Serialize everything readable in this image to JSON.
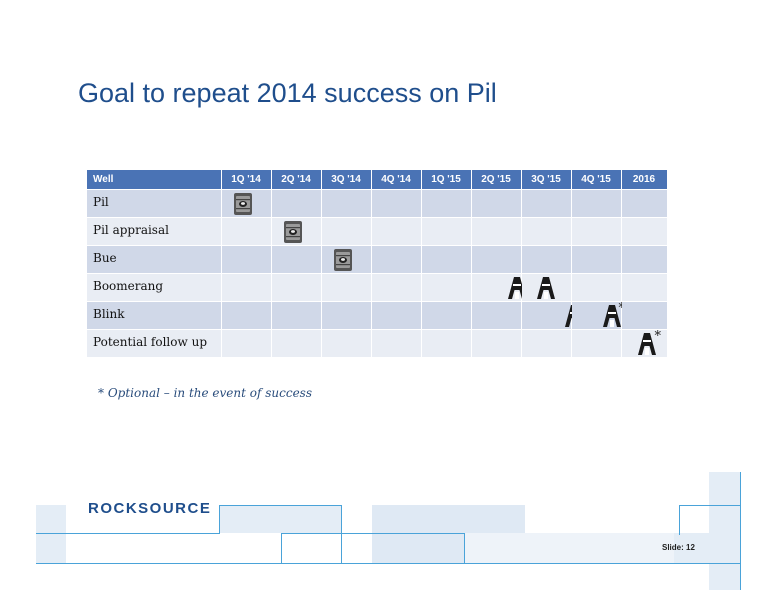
{
  "title": "Goal to repeat 2014 success on Pil",
  "table": {
    "headers": [
      "Well",
      "1Q '14",
      "2Q '14",
      "3Q '14",
      "4Q '14",
      "1Q '15",
      "2Q '15",
      "3Q '15",
      "4Q '15",
      "2016"
    ],
    "rows": [
      {
        "name": "Pil"
      },
      {
        "name": "Pil appraisal"
      },
      {
        "name": "Bue"
      },
      {
        "name": "Boomerang"
      },
      {
        "name": "Blink",
        "star": "*"
      },
      {
        "name": "Potential follow up",
        "star": "*"
      }
    ]
  },
  "icons": {
    "completed": "oil-barrel-icon",
    "planned": "drilling-rig-icon"
  },
  "footnote": "* Optional – in the event of success",
  "logo": "ROCKSOURCE",
  "slide_label": "Slide: 12",
  "colors": {
    "header": "#4a73b5",
    "row_odd": "#d0d8e8",
    "row_even": "#e9edf4",
    "title": "#1f4e8c"
  }
}
